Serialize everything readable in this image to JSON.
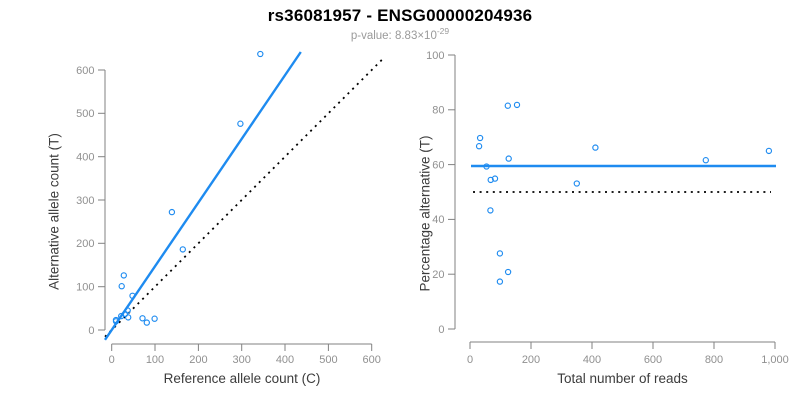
{
  "header": {
    "title": "rs36081957 - ENSG00000204936",
    "p_value_prefix": "p-value: 8.83×10",
    "p_value_exponent": "-29"
  },
  "chart_data": [
    {
      "type": "scatter",
      "panel": "left",
      "xlabel": "Reference allele count (C)",
      "ylabel": "Alternative allele count (T)",
      "xlim": [
        0,
        620
      ],
      "ylim": [
        0,
        645
      ],
      "grid": false,
      "legend": "none",
      "x_ticks": [
        0,
        100,
        200,
        300,
        400,
        500,
        600
      ],
      "x_tick_labels": [
        "0",
        "100",
        "200",
        "300",
        "400",
        "500",
        "600"
      ],
      "y_ticks": [
        0,
        100,
        200,
        300,
        400,
        500,
        600
      ],
      "y_tick_labels": [
        "0",
        "100",
        "200",
        "300",
        "400",
        "500",
        "600"
      ],
      "point_color": "#1E8BF0",
      "points": [
        [
          343,
          637
        ],
        [
          297,
          476
        ],
        [
          139,
          272
        ],
        [
          164,
          186
        ],
        [
          28,
          126
        ],
        [
          23,
          101
        ],
        [
          48,
          79
        ],
        [
          37,
          45
        ],
        [
          31,
          37
        ],
        [
          22,
          32
        ],
        [
          38,
          29
        ],
        [
          71,
          27
        ],
        [
          99,
          26
        ],
        [
          10,
          23
        ],
        [
          10,
          20
        ],
        [
          81,
          17
        ]
      ],
      "regression_line": {
        "slope": 1.47,
        "intercept": 0,
        "color": "#1E8BF0",
        "style": "solid"
      },
      "identity_line": {
        "slope": 1,
        "intercept": 0,
        "color": "#000000",
        "style": "dotted"
      }
    },
    {
      "type": "scatter",
      "panel": "right",
      "xlabel": "Total number of reads",
      "ylabel": "Percentage alternative (T)",
      "xlim": [
        0,
        1020
      ],
      "ylim": [
        0,
        100
      ],
      "grid": false,
      "legend": "none",
      "x_ticks": [
        0,
        200,
        400,
        600,
        800,
        1000
      ],
      "x_tick_labels": [
        "0",
        "200",
        "400",
        "600",
        "800",
        "1,000"
      ],
      "y_ticks": [
        0,
        20,
        40,
        60,
        80,
        100
      ],
      "y_tick_labels": [
        "0",
        "20",
        "40",
        "60",
        "80",
        "100"
      ],
      "point_color": "#1E8BF0",
      "points": [
        [
          980,
          65.0
        ],
        [
          773,
          61.6
        ],
        [
          411,
          66.2
        ],
        [
          350,
          53.1
        ],
        [
          154,
          81.8
        ],
        [
          124,
          81.5
        ],
        [
          127,
          62.2
        ],
        [
          33,
          69.7
        ],
        [
          30,
          66.7
        ],
        [
          54,
          59.3
        ],
        [
          68,
          54.4
        ],
        [
          82,
          54.9
        ],
        [
          67,
          43.3
        ],
        [
          98,
          27.6
        ],
        [
          125,
          20.8
        ],
        [
          98,
          17.3
        ]
      ],
      "mean_line": {
        "y": 59.5,
        "color": "#1E8BF0",
        "style": "solid"
      },
      "reference_line": {
        "y": 50,
        "color": "#000000",
        "style": "dotted"
      }
    }
  ]
}
